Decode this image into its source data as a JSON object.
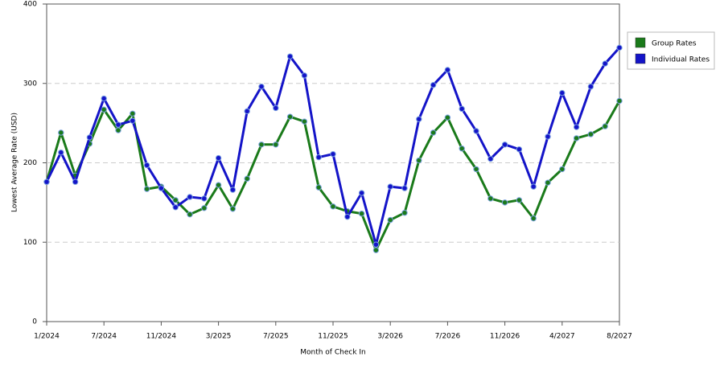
{
  "chart_data": {
    "type": "line",
    "x_label": "Month of Check In",
    "y_label": "Lowest Average Rate (USD)",
    "categories": [
      "1/2024",
      null,
      null,
      null,
      "7/2024",
      null,
      null,
      null,
      "11/2024",
      null,
      null,
      null,
      "3/2025",
      null,
      null,
      null,
      "7/2025",
      null,
      null,
      null,
      "11/2025",
      null,
      null,
      null,
      "3/2026",
      null,
      null,
      null,
      "7/2026",
      null,
      null,
      null,
      "11/2026",
      null,
      null,
      null,
      "4/2027",
      null,
      null,
      null,
      "8/2027"
    ],
    "series": [
      {
        "name": "Group Rates",
        "color": "#1a7a1a",
        "values": [
          176,
          238,
          184,
          224,
          267,
          241,
          262,
          167,
          170,
          153,
          135,
          143,
          172,
          142,
          180,
          223,
          223,
          258,
          252,
          169,
          145,
          139,
          136,
          90,
          128,
          137,
          203,
          238,
          257,
          218,
          192,
          155,
          150,
          153,
          130,
          175,
          192,
          231,
          236,
          246,
          278
        ]
      },
      {
        "name": "Individual Rates",
        "color": "#1414c8",
        "values": [
          176,
          213,
          176,
          232,
          281,
          248,
          253,
          197,
          168,
          144,
          157,
          155,
          206,
          166,
          265,
          296,
          269,
          334,
          310,
          207,
          211,
          132,
          162,
          97,
          170,
          168,
          255,
          298,
          317,
          268,
          240,
          205,
          223,
          217,
          170,
          233,
          288,
          245,
          296,
          325,
          345
        ]
      }
    ],
    "ylim": [
      0,
      400
    ],
    "yticks": [
      0,
      100,
      200,
      300,
      400
    ],
    "grid": true
  }
}
